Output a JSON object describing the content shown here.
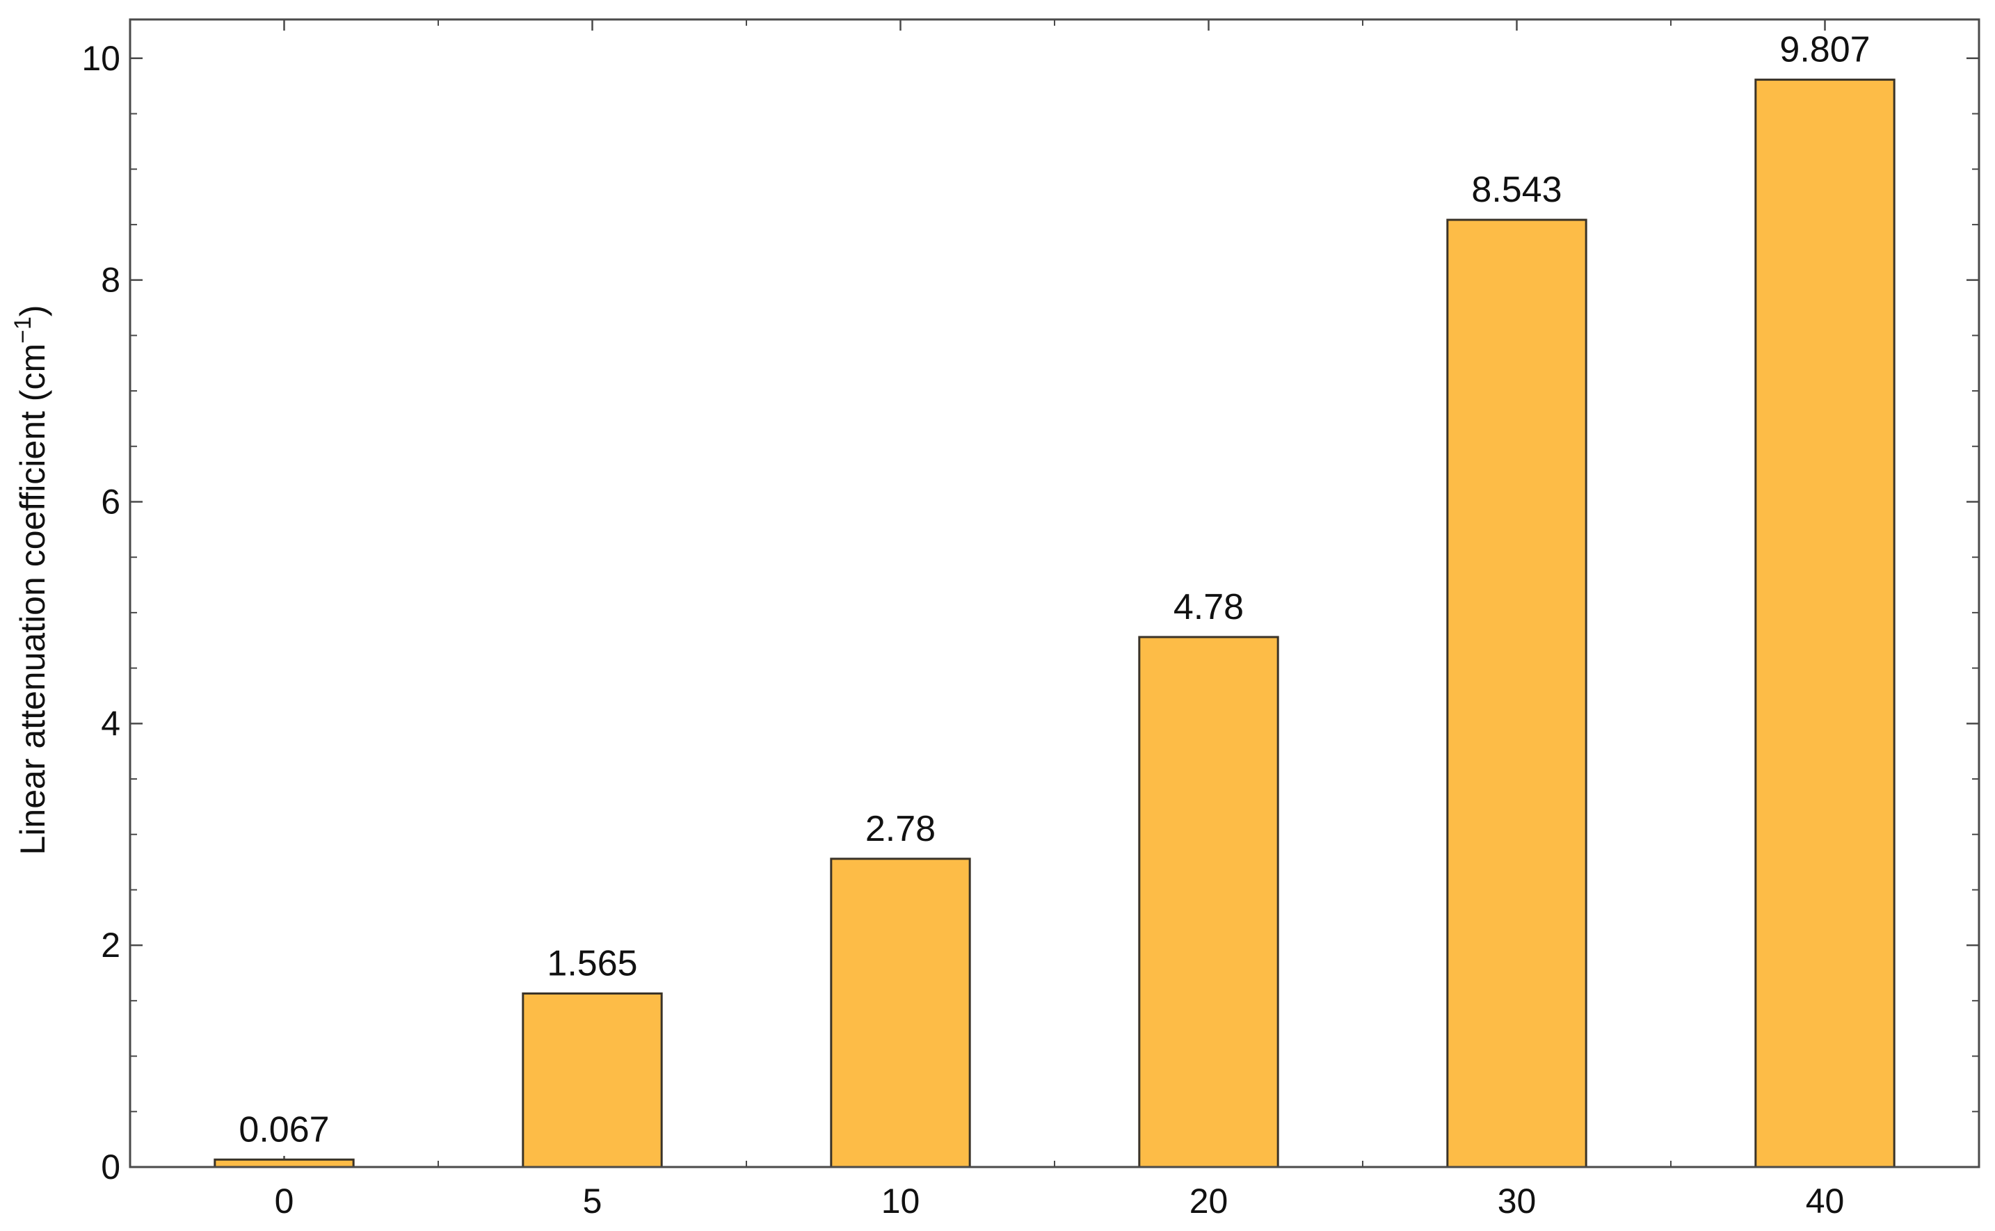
{
  "chart_data": {
    "type": "bar",
    "title": "",
    "xlabel": "",
    "ylabel": "Linear attenuation coefficient (cm",
    "ylabel_superscript": "−1",
    "ylabel_suffix": ")",
    "categories": [
      "0",
      "5",
      "10",
      "20",
      "30",
      "40"
    ],
    "values": [
      0.067,
      1.565,
      2.78,
      4.78,
      8.543,
      9.807
    ],
    "data_labels": [
      "0.067",
      "1.565",
      "2.78",
      "4.78",
      "8.543",
      "9.807"
    ],
    "ylim": [
      0,
      10.35
    ],
    "yticks": [
      0,
      2,
      4,
      6,
      8,
      10
    ],
    "ytick_labels": [
      "0",
      "2",
      "4",
      "6",
      "8",
      "10"
    ],
    "grid": false,
    "legend": "none",
    "bar_color": "#FDBC47",
    "bar_edge_color": "#3a3328"
  }
}
